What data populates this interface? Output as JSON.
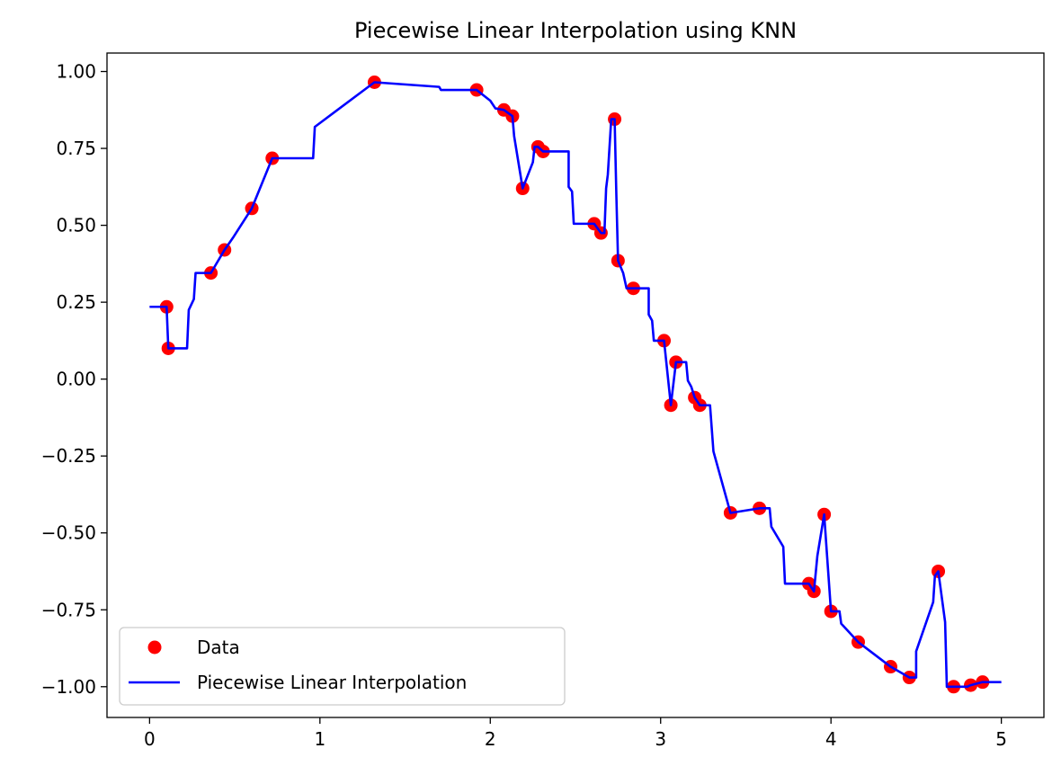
{
  "chart_data": {
    "type": "line+scatter",
    "title": "Piecewise Linear Interpolation using KNN",
    "xlabel": "",
    "ylabel": "",
    "xlim": [
      -0.25,
      5.25
    ],
    "ylim": [
      -1.1,
      1.06
    ],
    "x_ticks": [
      0,
      1,
      2,
      3,
      4,
      5
    ],
    "x_tick_labels": [
      "0",
      "1",
      "2",
      "3",
      "4",
      "5"
    ],
    "y_ticks": [
      1.0,
      0.75,
      0.5,
      0.25,
      0.0,
      -0.25,
      -0.5,
      -0.75,
      -1.0
    ],
    "y_tick_labels": [
      "1.00",
      "0.75",
      "0.50",
      "0.25",
      "0.00",
      "−0.25",
      "−0.50",
      "−0.75",
      "−1.00"
    ],
    "grid": false,
    "legend_position": "bottom-left",
    "series": [
      {
        "name": "Data",
        "kind": "scatter",
        "color": "#ff0000",
        "points": [
          [
            0.1,
            0.235
          ],
          [
            0.11,
            0.1
          ],
          [
            0.36,
            0.345
          ],
          [
            0.44,
            0.42
          ],
          [
            0.6,
            0.555
          ],
          [
            0.72,
            0.718
          ],
          [
            1.32,
            0.965
          ],
          [
            1.92,
            0.94
          ],
          [
            2.08,
            0.875
          ],
          [
            2.13,
            0.855
          ],
          [
            2.19,
            0.62
          ],
          [
            2.28,
            0.755
          ],
          [
            2.31,
            0.74
          ],
          [
            2.61,
            0.505
          ],
          [
            2.65,
            0.475
          ],
          [
            2.73,
            0.845
          ],
          [
            2.75,
            0.385
          ],
          [
            2.84,
            0.295
          ],
          [
            3.02,
            0.125
          ],
          [
            3.06,
            -0.085
          ],
          [
            3.09,
            0.055
          ],
          [
            3.2,
            -0.06
          ],
          [
            3.23,
            -0.085
          ],
          [
            3.41,
            -0.435
          ],
          [
            3.58,
            -0.42
          ],
          [
            3.87,
            -0.665
          ],
          [
            3.9,
            -0.69
          ],
          [
            3.96,
            -0.44
          ],
          [
            4.0,
            -0.755
          ],
          [
            4.16,
            -0.855
          ],
          [
            4.35,
            -0.935
          ],
          [
            4.46,
            -0.97
          ],
          [
            4.63,
            -0.625
          ],
          [
            4.72,
            -1.0
          ],
          [
            4.82,
            -0.995
          ],
          [
            4.89,
            -0.985
          ]
        ]
      },
      {
        "name": "Piecewise Linear Interpolation",
        "kind": "line",
        "color": "#0000ff",
        "points": [
          [
            0.0,
            0.235
          ],
          [
            0.09,
            0.235
          ],
          [
            0.1,
            0.235
          ],
          [
            0.11,
            0.1
          ],
          [
            0.15,
            0.1
          ],
          [
            0.22,
            0.1
          ],
          [
            0.23,
            0.225
          ],
          [
            0.26,
            0.26
          ],
          [
            0.27,
            0.345
          ],
          [
            0.36,
            0.345
          ],
          [
            0.44,
            0.42
          ],
          [
            0.49,
            0.46
          ],
          [
            0.6,
            0.555
          ],
          [
            0.72,
            0.718
          ],
          [
            0.96,
            0.718
          ],
          [
            0.97,
            0.82
          ],
          [
            1.32,
            0.965
          ],
          [
            1.7,
            0.95
          ],
          [
            1.71,
            0.94
          ],
          [
            1.92,
            0.94
          ],
          [
            2.0,
            0.905
          ],
          [
            2.03,
            0.88
          ],
          [
            2.08,
            0.875
          ],
          [
            2.13,
            0.855
          ],
          [
            2.14,
            0.79
          ],
          [
            2.19,
            0.62
          ],
          [
            2.25,
            0.705
          ],
          [
            2.26,
            0.755
          ],
          [
            2.28,
            0.755
          ],
          [
            2.31,
            0.74
          ],
          [
            2.46,
            0.74
          ],
          [
            2.46,
            0.625
          ],
          [
            2.48,
            0.61
          ],
          [
            2.49,
            0.505
          ],
          [
            2.61,
            0.505
          ],
          [
            2.65,
            0.475
          ],
          [
            2.67,
            0.475
          ],
          [
            2.68,
            0.62
          ],
          [
            2.69,
            0.665
          ],
          [
            2.71,
            0.845
          ],
          [
            2.73,
            0.845
          ],
          [
            2.74,
            0.6
          ],
          [
            2.75,
            0.385
          ],
          [
            2.78,
            0.345
          ],
          [
            2.8,
            0.295
          ],
          [
            2.84,
            0.295
          ],
          [
            2.93,
            0.295
          ],
          [
            2.93,
            0.21
          ],
          [
            2.95,
            0.19
          ],
          [
            2.96,
            0.125
          ],
          [
            3.02,
            0.125
          ],
          [
            3.06,
            -0.085
          ],
          [
            3.09,
            0.055
          ],
          [
            3.15,
            0.055
          ],
          [
            3.16,
            -0.005
          ],
          [
            3.18,
            -0.025
          ],
          [
            3.2,
            -0.06
          ],
          [
            3.23,
            -0.085
          ],
          [
            3.29,
            -0.085
          ],
          [
            3.31,
            -0.235
          ],
          [
            3.41,
            -0.435
          ],
          [
            3.58,
            -0.42
          ],
          [
            3.64,
            -0.42
          ],
          [
            3.65,
            -0.48
          ],
          [
            3.72,
            -0.545
          ],
          [
            3.73,
            -0.665
          ],
          [
            3.85,
            -0.665
          ],
          [
            3.87,
            -0.665
          ],
          [
            3.9,
            -0.69
          ],
          [
            3.92,
            -0.575
          ],
          [
            3.96,
            -0.44
          ],
          [
            4.0,
            -0.755
          ],
          [
            4.05,
            -0.755
          ],
          [
            4.06,
            -0.795
          ],
          [
            4.16,
            -0.855
          ],
          [
            4.35,
            -0.935
          ],
          [
            4.46,
            -0.97
          ],
          [
            4.5,
            -0.97
          ],
          [
            4.5,
            -0.885
          ],
          [
            4.6,
            -0.725
          ],
          [
            4.61,
            -0.64
          ],
          [
            4.63,
            -0.625
          ],
          [
            4.67,
            -0.79
          ],
          [
            4.68,
            -1.0
          ],
          [
            4.72,
            -1.0
          ],
          [
            4.8,
            -1.0
          ],
          [
            4.82,
            -0.995
          ],
          [
            4.89,
            -0.985
          ],
          [
            5.0,
            -0.985
          ]
        ]
      }
    ]
  }
}
